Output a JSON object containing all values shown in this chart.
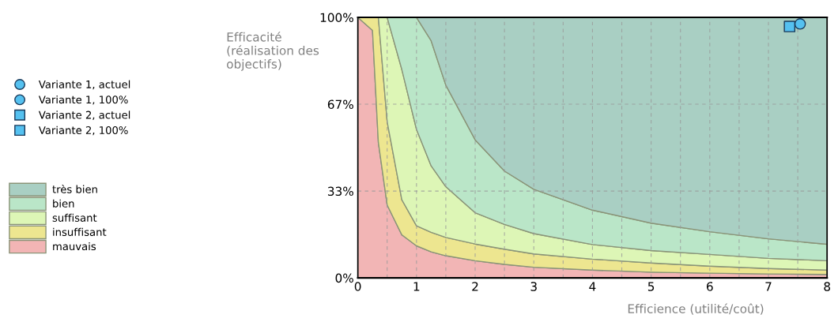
{
  "chart_data": {
    "type": "area",
    "stacked": true,
    "xlabel": "Efficience (utilité/coût)",
    "ylabel": "Efficacité\n(réalisation des\nobjectifs)",
    "xlim": [
      0,
      8
    ],
    "ylim": [
      0,
      100
    ],
    "xticks": [
      0,
      {
        "value": 0.5,
        "label": null
      },
      1,
      {
        "value": 1.5,
        "label": null
      },
      2,
      {
        "value": 2.5,
        "label": null
      },
      3,
      {
        "value": 3.5,
        "label": null
      },
      4,
      {
        "value": 4.5,
        "label": null
      },
      5,
      {
        "value": 5.5,
        "label": null
      },
      6,
      {
        "value": 6.5,
        "label": null
      },
      7,
      {
        "value": 7.5,
        "label": null
      },
      8
    ],
    "yticks": [
      {
        "value": 0,
        "label": "0%"
      },
      {
        "value": 33.33,
        "label": "33%"
      },
      {
        "value": 66.67,
        "label": "67%"
      },
      {
        "value": 100,
        "label": "100%"
      }
    ],
    "grid": true,
    "legend": "left",
    "x": [
      0,
      0.25,
      0.35,
      0.5,
      0.75,
      1,
      1.25,
      1.5,
      2,
      2.5,
      3,
      4,
      5,
      6,
      7,
      8
    ],
    "series": [
      {
        "name": "Variante 1, actuel",
        "type": "scatter",
        "marker": "circle",
        "color": "#55c1f0",
        "x": [
          null
        ],
        "values": [
          null
        ]
      },
      {
        "name": "Variante 1, 100%",
        "type": "scatter",
        "marker": "circle",
        "color": "#55c1f0",
        "x": [
          7.54
        ],
        "values": [
          97.5
        ]
      },
      {
        "name": "Variante 2, actuel",
        "type": "scatter",
        "marker": "square",
        "color": "#55c1f0",
        "x": [
          null
        ],
        "values": [
          null
        ]
      },
      {
        "name": "Variante 2, 100%",
        "type": "scatter",
        "marker": "square",
        "color": "#55c1f0",
        "x": [
          7.36
        ],
        "values": [
          96.5
        ]
      },
      {
        "name": "mauvais",
        "color": "#f2b5b5",
        "values": [
          100,
          95,
          52,
          28,
          16.5,
          12.3,
          10,
          8.5,
          6.6,
          5.2,
          4.1,
          3,
          2.2,
          1.8,
          1.5,
          1.3
        ]
      },
      {
        "name": "insuffisant",
        "color": "#ede690",
        "values": [
          0,
          5,
          48,
          32,
          13.5,
          7.7,
          7.5,
          7,
          6.4,
          5.8,
          5.1,
          4.2,
          3.5,
          2.7,
          2.1,
          1.7
        ]
      },
      {
        "name": "suffisant",
        "color": "#ddf6b6",
        "values": [
          0,
          0,
          0,
          40,
          50,
          37,
          25.5,
          19.5,
          12,
          9.5,
          7.8,
          5.6,
          4.8,
          4.5,
          3.9,
          3.6
        ]
      },
      {
        "name": "bien",
        "color": "#bae6c8",
        "values": [
          0,
          0,
          0,
          0,
          20,
          43,
          48,
          39,
          28,
          20.5,
          17,
          13.2,
          10.5,
          8.7,
          7.5,
          6.3
        ]
      },
      {
        "name": "très bien",
        "color": "#a9cfc3",
        "values": [
          0,
          0,
          0,
          0,
          0,
          0,
          9,
          26,
          47,
          59,
          66,
          74,
          79,
          82.3,
          85,
          87.1
        ]
      }
    ]
  }
}
